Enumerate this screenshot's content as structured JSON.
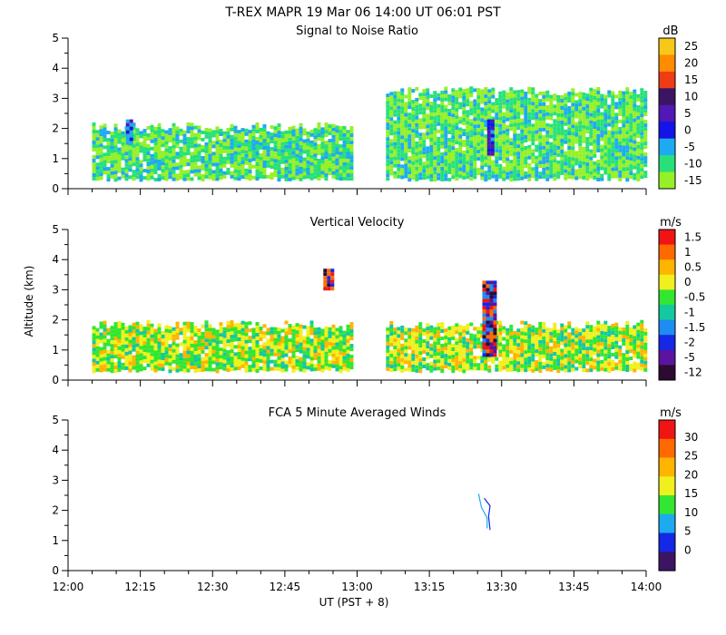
{
  "figure": {
    "title": "T-REX   MAPR 19 Mar 06   14:00 UT   06:01   PST",
    "xlabel": "UT  (PST + 8)",
    "ylabel": "Altitude  (km)",
    "xticks": [
      "12:00",
      "12:15",
      "12:30",
      "12:45",
      "13:00",
      "13:15",
      "13:30",
      "13:45",
      "14:00"
    ],
    "yticks": [
      "0",
      "1",
      "2",
      "3",
      "4",
      "5"
    ]
  },
  "colors": {
    "background": "#ffffff",
    "axis": "#000000"
  },
  "chart_data": [
    {
      "type": "heatmap",
      "title": "Signal to Noise Ratio",
      "ylim": [
        0,
        5
      ],
      "x_range_ut": [
        "12:00",
        "14:00"
      ],
      "colorbar": {
        "unit": "dB",
        "labels": [
          "25",
          "20",
          "15",
          "10",
          "5",
          "0",
          "-5",
          "-10",
          "-15"
        ],
        "colors": [
          "#f7c81a",
          "#ff8c00",
          "#f03c14",
          "#3c1464",
          "#5018b4",
          "#1414e6",
          "#1eaaf0",
          "#28e07a",
          "#96f028"
        ]
      },
      "regions": [
        {
          "x": [
            "12:05",
            "12:59"
          ],
          "alt_km": [
            0.35,
            2.2
          ],
          "fill": "mostly 0 to -10 dB"
        },
        {
          "x": [
            "13:06",
            "14:00"
          ],
          "alt_km": [
            0.35,
            3.4
          ],
          "fill": "mostly -5 to -15 dB"
        },
        {
          "x": [
            "12:12",
            "12:13"
          ],
          "alt_km": [
            1.5,
            2.3
          ],
          "fill": "0 to -5 dB core"
        },
        {
          "x": [
            "13:27",
            "13:28"
          ],
          "alt_km": [
            1.1,
            2.3
          ],
          "fill": "5 to 0 dB core"
        }
      ]
    },
    {
      "type": "heatmap",
      "title": "Vertical Velocity",
      "ylim": [
        0,
        5
      ],
      "x_range_ut": [
        "12:00",
        "14:00"
      ],
      "colorbar": {
        "unit": "m/s",
        "labels": [
          "1.5",
          "1",
          "0.5",
          "0",
          "-0.5",
          "-1",
          "-1.5",
          "-2",
          "-5",
          "-12"
        ],
        "colors": [
          "#f01414",
          "#ff6a00",
          "#ffb400",
          "#f0f01e",
          "#32e632",
          "#14c8a0",
          "#1e8cf0",
          "#1428e6",
          "#5a14a0",
          "#2d0a32"
        ]
      },
      "regions": [
        {
          "x": [
            "12:05",
            "12:59"
          ],
          "alt_km": [
            0.35,
            2.0
          ],
          "fill": "mostly 0.5 to -0.5 m/s"
        },
        {
          "x": [
            "13:06",
            "14:00"
          ],
          "alt_km": [
            0.35,
            2.0
          ],
          "fill": "mostly 0.5 to -0.5 m/s"
        },
        {
          "x": [
            "12:53",
            "12:55"
          ],
          "alt_km": [
            3.0,
            3.7
          ],
          "fill": "1.5 to -2 m/s"
        },
        {
          "x": [
            "13:26",
            "13:29"
          ],
          "alt_km": [
            0.8,
            3.3
          ],
          "fill": "1.5 to -12 m/s"
        }
      ]
    },
    {
      "type": "line",
      "title": "FCA 5 Minute Averaged Winds",
      "ylim": [
        0,
        5
      ],
      "x_range_ut": [
        "12:00",
        "14:00"
      ],
      "colorbar": {
        "unit": "m/s",
        "labels": [
          "30",
          "25",
          "20",
          "15",
          "10",
          "5",
          "0"
        ],
        "colors": [
          "#f01414",
          "#ff6a00",
          "#ffb400",
          "#f0f01e",
          "#32e632",
          "#1eaaf0",
          "#1428e6",
          "#3c1464"
        ]
      },
      "series": [
        {
          "points": [
            [
              13.42,
              2.55
            ],
            [
              13.43,
              2.1
            ],
            [
              13.45,
              1.75
            ],
            [
              13.45,
              1.4
            ]
          ],
          "color": "#1eaaf0"
        },
        {
          "points": [
            [
              13.44,
              2.4
            ],
            [
              13.46,
              2.15
            ],
            [
              13.455,
              1.8
            ],
            [
              13.46,
              1.35
            ]
          ],
          "color": "#1428e6"
        }
      ]
    }
  ]
}
